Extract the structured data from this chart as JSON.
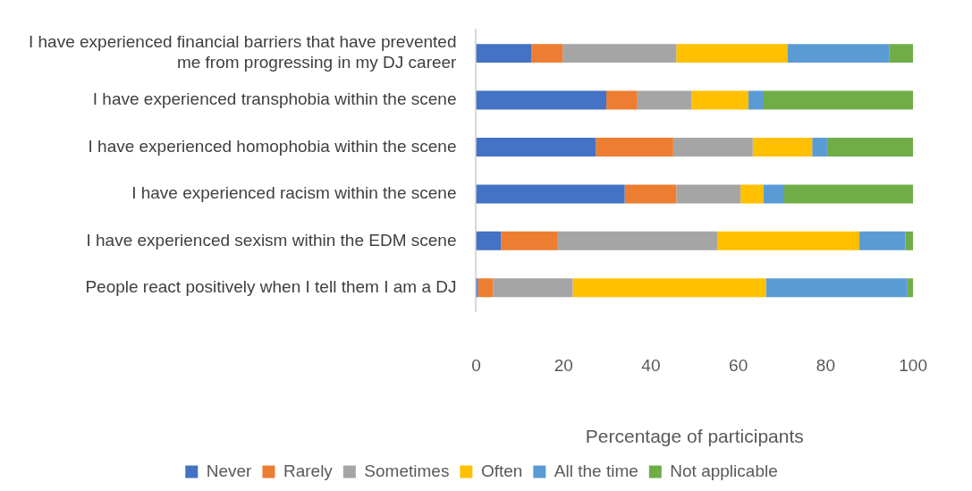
{
  "chart_data": {
    "type": "bar",
    "orientation": "horizontal",
    "stacked": true,
    "categories": [
      "I have experienced financial barriers that have prevented me from progressing in my DJ career",
      "I have experienced transphobia within the scene",
      "I have experienced homophobia within the scene",
      "I have experienced racism within the scene",
      "I have experienced sexism within the EDM scene",
      "People react positively when I tell them I am a DJ"
    ],
    "series": [
      {
        "name": "Never",
        "color": "#4472c4",
        "values": [
          12.7,
          29.8,
          27.4,
          34.0,
          5.7,
          0.4
        ]
      },
      {
        "name": "Rarely",
        "color": "#ed7d31",
        "values": [
          7.1,
          7.1,
          17.7,
          11.8,
          13.0,
          3.5
        ]
      },
      {
        "name": "Sometimes",
        "color": "#a5a5a5",
        "values": [
          26.0,
          12.4,
          18.2,
          14.7,
          36.5,
          18.2
        ]
      },
      {
        "name": "Often",
        "color": "#ffc000",
        "values": [
          25.4,
          13.0,
          13.6,
          5.3,
          32.5,
          44.2
        ]
      },
      {
        "name": "All the time",
        "color": "#5b9bd5",
        "values": [
          23.4,
          3.5,
          3.4,
          4.7,
          10.5,
          32.4
        ]
      },
      {
        "name": "Not applicable",
        "color": "#70ad47",
        "values": [
          5.4,
          34.2,
          19.7,
          29.5,
          1.8,
          1.3
        ]
      }
    ],
    "xlabel": "Percentage of participants",
    "xlim": [
      0,
      100
    ],
    "xticks": [
      0,
      20,
      40,
      60,
      80,
      100
    ],
    "grid": false,
    "legend": "bottom"
  }
}
